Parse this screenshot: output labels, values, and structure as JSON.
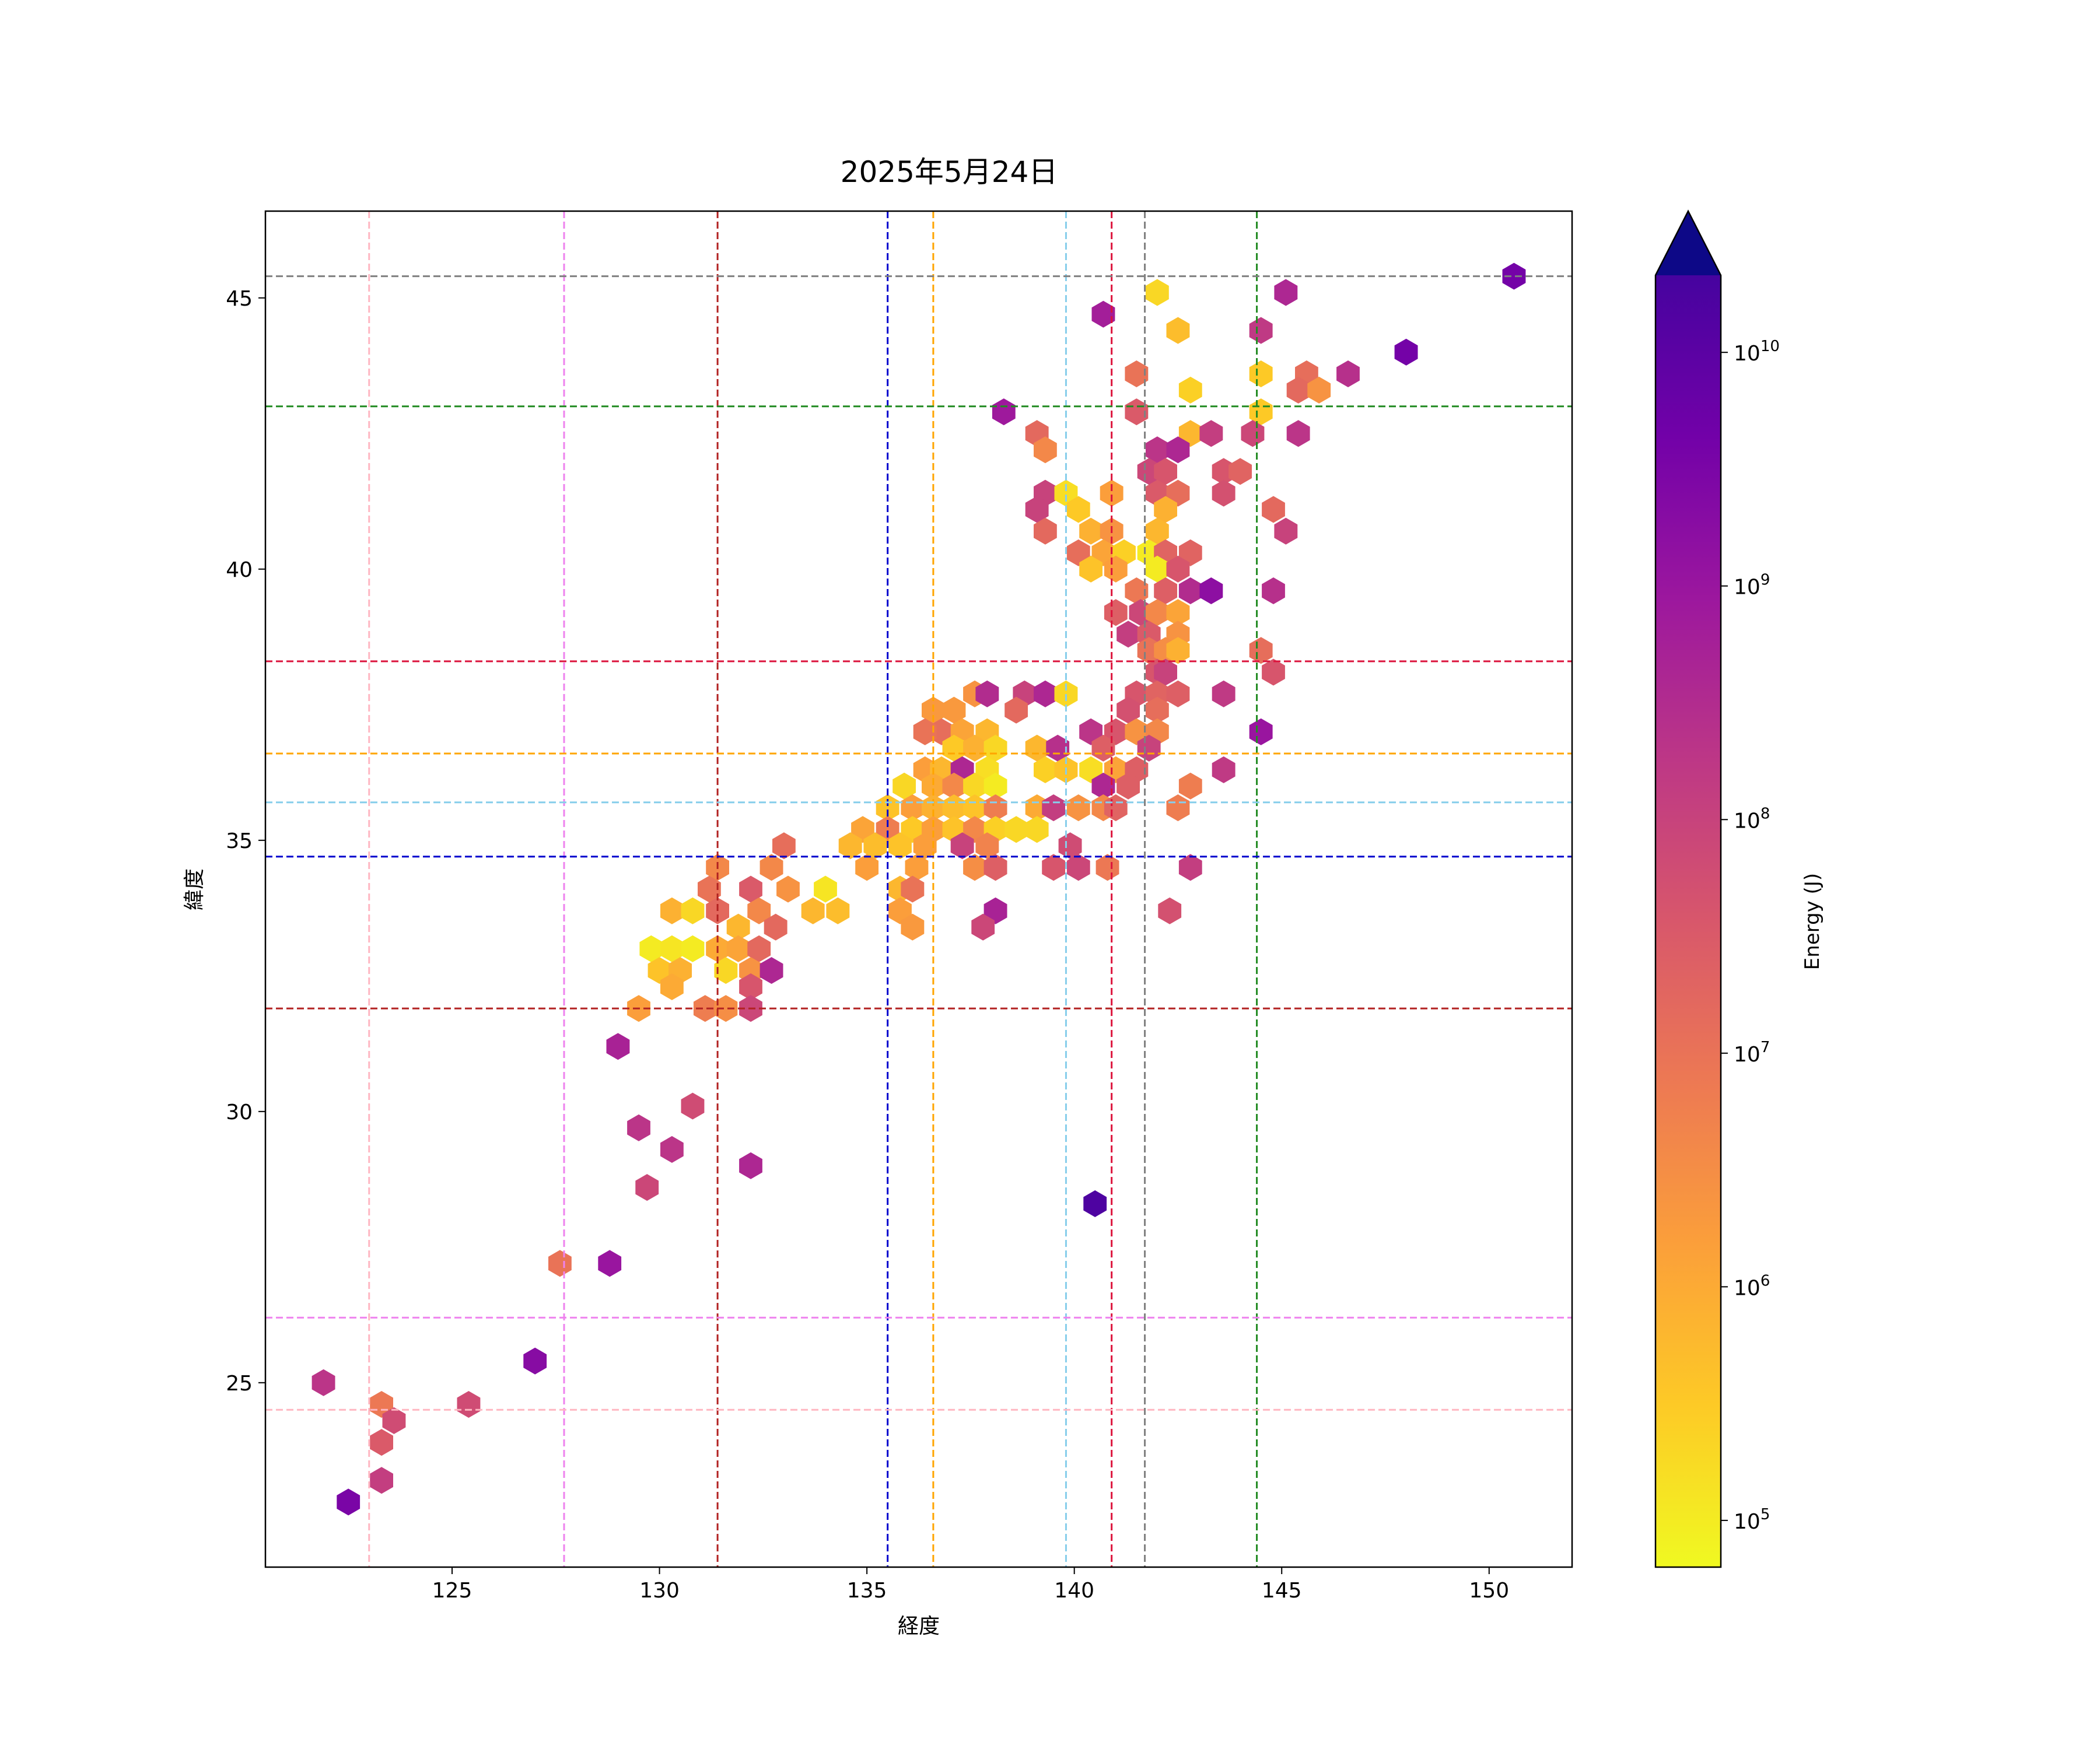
{
  "chart_data": {
    "type": "hexbin",
    "title": "2025年5月24日",
    "xlabel": "経度",
    "ylabel": "緯度",
    "xlim": [
      120.5,
      152.0
    ],
    "ylim": [
      21.6,
      46.6
    ],
    "xticks": [
      125,
      130,
      135,
      140,
      145,
      150
    ],
    "yticks": [
      25,
      30,
      35,
      40,
      45
    ],
    "grid": false,
    "colorbar": {
      "label": "Energy (J)",
      "scale": "log",
      "colormap": "plasma_r",
      "extend": "max",
      "min_exp": 4.8,
      "max_exp": 10.33,
      "ticks": [
        {
          "value": 100000,
          "label": "10",
          "exp": "5"
        },
        {
          "value": 1000000,
          "label": "10",
          "exp": "6"
        },
        {
          "value": 10000000,
          "label": "10",
          "exp": "7"
        },
        {
          "value": 100000000,
          "label": "10",
          "exp": "8"
        },
        {
          "value": 1000000000,
          "label": "10",
          "exp": "9"
        },
        {
          "value": 10000000000,
          "label": "10",
          "exp": "10"
        }
      ]
    },
    "reference_lines": {
      "vertical": [
        {
          "x": 123.0,
          "color": "#ffb6c1"
        },
        {
          "x": 127.7,
          "color": "#ee82ee"
        },
        {
          "x": 131.4,
          "color": "#b22222"
        },
        {
          "x": 135.5,
          "color": "#0000cd"
        },
        {
          "x": 136.6,
          "color": "#ffa500"
        },
        {
          "x": 139.8,
          "color": "#87ceeb"
        },
        {
          "x": 140.9,
          "color": "#dc143c"
        },
        {
          "x": 141.7,
          "color": "#808080"
        },
        {
          "x": 144.4,
          "color": "#228b22"
        }
      ],
      "horizontal": [
        {
          "y": 45.4,
          "color": "#808080"
        },
        {
          "y": 43.0,
          "color": "#228b22"
        },
        {
          "y": 38.3,
          "color": "#dc143c"
        },
        {
          "y": 36.6,
          "color": "#ffa500"
        },
        {
          "y": 35.7,
          "color": "#87ceeb"
        },
        {
          "y": 34.7,
          "color": "#0000cd"
        },
        {
          "y": 31.9,
          "color": "#b22222"
        },
        {
          "y": 26.2,
          "color": "#ee82ee"
        },
        {
          "y": 24.5,
          "color": "#ffb6c1"
        }
      ]
    },
    "cells": [
      [
        150.6,
        45.4,
        9.6
      ],
      [
        145.1,
        45.1,
        8.6
      ],
      [
        142.0,
        45.1,
        5.3
      ],
      [
        140.7,
        44.7,
        8.8
      ],
      [
        144.5,
        44.4,
        8.2
      ],
      [
        142.5,
        44.4,
        5.7
      ],
      [
        148.0,
        44.0,
        9.6
      ],
      [
        146.6,
        43.6,
        8.4
      ],
      [
        145.6,
        43.6,
        7.1
      ],
      [
        144.5,
        43.6,
        5.5
      ],
      [
        141.5,
        43.6,
        7.0
      ],
      [
        145.4,
        43.3,
        7.2
      ],
      [
        145.9,
        43.3,
        6.4
      ],
      [
        142.8,
        43.3,
        5.4
      ],
      [
        138.3,
        42.9,
        8.9
      ],
      [
        141.5,
        42.9,
        7.5
      ],
      [
        144.5,
        42.9,
        5.5
      ],
      [
        139.1,
        42.5,
        7.2
      ],
      [
        142.8,
        42.5,
        5.8
      ],
      [
        143.3,
        42.5,
        8.1
      ],
      [
        144.3,
        42.5,
        7.9
      ],
      [
        145.4,
        42.5,
        8.3
      ],
      [
        139.3,
        42.2,
        6.6
      ],
      [
        142.0,
        42.2,
        8.3
      ],
      [
        142.5,
        42.2,
        8.6
      ],
      [
        143.6,
        41.8,
        7.6
      ],
      [
        144.0,
        41.8,
        7.3
      ],
      [
        141.8,
        41.8,
        7.9
      ],
      [
        142.2,
        41.8,
        7.6
      ],
      [
        139.3,
        41.4,
        8.0
      ],
      [
        139.8,
        41.4,
        5.2
      ],
      [
        140.9,
        41.4,
        6.2
      ],
      [
        142.0,
        41.4,
        7.5
      ],
      [
        142.5,
        41.4,
        7.1
      ],
      [
        143.6,
        41.4,
        7.7
      ],
      [
        139.1,
        41.1,
        8.0
      ],
      [
        140.1,
        41.1,
        5.5
      ],
      [
        142.2,
        41.1,
        5.9
      ],
      [
        144.8,
        41.1,
        7.2
      ],
      [
        139.3,
        40.7,
        7.2
      ],
      [
        140.4,
        40.7,
        5.9
      ],
      [
        140.9,
        40.7,
        6.4
      ],
      [
        142.0,
        40.7,
        5.8
      ],
      [
        145.1,
        40.7,
        8.0
      ],
      [
        140.1,
        40.3,
        7.1
      ],
      [
        140.7,
        40.3,
        6.1
      ],
      [
        141.2,
        40.3,
        5.4
      ],
      [
        141.8,
        40.3,
        5.0
      ],
      [
        142.2,
        40.3,
        7.3
      ],
      [
        142.8,
        40.3,
        7.3
      ],
      [
        140.4,
        40.0,
        5.6
      ],
      [
        141.0,
        40.0,
        6.2
      ],
      [
        142.0,
        40.0,
        5.0
      ],
      [
        142.5,
        40.0,
        7.6
      ],
      [
        141.5,
        39.6,
        6.9
      ],
      [
        142.2,
        39.6,
        7.4
      ],
      [
        142.8,
        39.6,
        8.5
      ],
      [
        143.3,
        39.6,
        9.2
      ],
      [
        144.8,
        39.6,
        8.4
      ],
      [
        141.0,
        39.2,
        7.4
      ],
      [
        141.6,
        39.2,
        7.9
      ],
      [
        142.0,
        39.2,
        6.6
      ],
      [
        142.5,
        39.2,
        6.1
      ],
      [
        141.3,
        38.8,
        8.1
      ],
      [
        141.8,
        38.8,
        7.5
      ],
      [
        142.5,
        38.8,
        6.4
      ],
      [
        141.8,
        38.5,
        7.0
      ],
      [
        142.2,
        38.5,
        6.5
      ],
      [
        142.5,
        38.5,
        5.9
      ],
      [
        144.5,
        38.5,
        7.1
      ],
      [
        142.0,
        38.1,
        7.6
      ],
      [
        142.2,
        38.1,
        8.0
      ],
      [
        144.8,
        38.1,
        7.6
      ],
      [
        136.6,
        37.4,
        6.3
      ],
      [
        137.1,
        37.4,
        6.3
      ],
      [
        137.6,
        37.7,
        6.4
      ],
      [
        137.9,
        37.7,
        8.5
      ],
      [
        138.8,
        37.7,
        8.0
      ],
      [
        139.3,
        37.7,
        8.6
      ],
      [
        139.8,
        37.7,
        5.3
      ],
      [
        141.5,
        37.7,
        7.6
      ],
      [
        142.0,
        37.7,
        7.3
      ],
      [
        142.5,
        37.7,
        7.4
      ],
      [
        143.6,
        37.7,
        8.2
      ],
      [
        136.8,
        37.0,
        7.1
      ],
      [
        137.3,
        37.0,
        6.1
      ],
      [
        137.9,
        37.0,
        5.8
      ],
      [
        138.6,
        37.4,
        7.2
      ],
      [
        141.3,
        37.4,
        7.7
      ],
      [
        142.0,
        37.4,
        7.1
      ],
      [
        136.4,
        37.0,
        7.0
      ],
      [
        140.4,
        37.0,
        8.3
      ],
      [
        141.0,
        37.0,
        7.6
      ],
      [
        141.5,
        37.0,
        6.4
      ],
      [
        142.0,
        37.0,
        6.6
      ],
      [
        144.5,
        37.0,
        9.0
      ],
      [
        137.1,
        36.7,
        5.5
      ],
      [
        137.6,
        36.7,
        5.9
      ],
      [
        138.1,
        36.7,
        5.3
      ],
      [
        139.1,
        36.7,
        5.8
      ],
      [
        139.6,
        36.7,
        8.4
      ],
      [
        140.7,
        36.7,
        7.4
      ],
      [
        141.8,
        36.7,
        8.0
      ],
      [
        136.4,
        36.3,
        6.2
      ],
      [
        136.8,
        36.3,
        5.8
      ],
      [
        137.3,
        36.3,
        8.6
      ],
      [
        137.9,
        36.3,
        5.2
      ],
      [
        139.3,
        36.3,
        5.4
      ],
      [
        139.8,
        36.3,
        5.6
      ],
      [
        140.4,
        36.3,
        5.2
      ],
      [
        141.0,
        36.3,
        6.1
      ],
      [
        141.5,
        36.3,
        7.4
      ],
      [
        143.6,
        36.3,
        8.2
      ],
      [
        135.9,
        36.0,
        5.3
      ],
      [
        136.6,
        36.0,
        6.0
      ],
      [
        137.1,
        36.0,
        6.6
      ],
      [
        137.6,
        36.0,
        5.3
      ],
      [
        138.1,
        36.0,
        5.0
      ],
      [
        140.7,
        36.0,
        8.6
      ],
      [
        141.3,
        36.0,
        7.4
      ],
      [
        142.8,
        36.0,
        6.8
      ],
      [
        135.5,
        35.6,
        5.6
      ],
      [
        136.1,
        35.6,
        6.2
      ],
      [
        136.6,
        35.6,
        5.9
      ],
      [
        137.1,
        35.6,
        5.7
      ],
      [
        137.6,
        35.6,
        5.6
      ],
      [
        138.1,
        35.6,
        6.8
      ],
      [
        139.1,
        35.6,
        6.0
      ],
      [
        139.5,
        35.6,
        8.1
      ],
      [
        140.1,
        35.6,
        6.4
      ],
      [
        140.7,
        35.6,
        6.6
      ],
      [
        141.0,
        35.6,
        7.3
      ],
      [
        142.5,
        35.6,
        6.8
      ],
      [
        134.9,
        35.2,
        6.1
      ],
      [
        135.5,
        35.2,
        6.8
      ],
      [
        136.1,
        35.2,
        5.5
      ],
      [
        136.6,
        35.2,
        6.2
      ],
      [
        137.1,
        35.2,
        5.6
      ],
      [
        137.6,
        35.2,
        6.6
      ],
      [
        138.1,
        35.2,
        5.4
      ],
      [
        138.6,
        35.2,
        5.3
      ],
      [
        139.1,
        35.2,
        5.3
      ],
      [
        134.6,
        34.9,
        5.8
      ],
      [
        135.2,
        34.9,
        5.7
      ],
      [
        135.8,
        34.9,
        5.6
      ],
      [
        136.4,
        34.9,
        6.2
      ],
      [
        137.3,
        34.9,
        8.0
      ],
      [
        137.9,
        34.9,
        6.7
      ],
      [
        139.9,
        34.9,
        7.8
      ],
      [
        133.0,
        34.9,
        7.1
      ],
      [
        132.7,
        34.5,
        6.6
      ],
      [
        135.0,
        34.5,
        6.2
      ],
      [
        136.2,
        34.5,
        6.2
      ],
      [
        137.6,
        34.5,
        6.5
      ],
      [
        138.1,
        34.5,
        7.4
      ],
      [
        139.5,
        34.5,
        7.6
      ],
      [
        140.1,
        34.5,
        7.9
      ],
      [
        140.8,
        34.5,
        6.9
      ],
      [
        142.8,
        34.5,
        8.1
      ],
      [
        131.4,
        34.5,
        6.6
      ],
      [
        133.1,
        34.1,
        6.4
      ],
      [
        134.0,
        34.1,
        5.1
      ],
      [
        135.8,
        34.1,
        5.8
      ],
      [
        136.1,
        34.1,
        7.0
      ],
      [
        131.2,
        34.1,
        7.0
      ],
      [
        132.2,
        34.1,
        7.5
      ],
      [
        130.3,
        33.7,
        5.9
      ],
      [
        130.8,
        33.7,
        5.3
      ],
      [
        131.4,
        33.7,
        7.2
      ],
      [
        132.4,
        33.7,
        6.6
      ],
      [
        133.7,
        33.7,
        5.8
      ],
      [
        134.3,
        33.7,
        5.7
      ],
      [
        135.8,
        33.7,
        6.2
      ],
      [
        138.1,
        33.7,
        8.7
      ],
      [
        142.3,
        33.7,
        7.7
      ],
      [
        131.9,
        33.4,
        5.8
      ],
      [
        132.8,
        33.4,
        7.2
      ],
      [
        136.1,
        33.4,
        6.3
      ],
      [
        137.8,
        33.4,
        7.9
      ],
      [
        129.8,
        33.0,
        5.0
      ],
      [
        130.3,
        33.0,
        5.1
      ],
      [
        130.8,
        33.0,
        5.0
      ],
      [
        131.4,
        33.0,
        6.0
      ],
      [
        131.9,
        33.0,
        6.1
      ],
      [
        132.4,
        33.0,
        7.2
      ],
      [
        130.0,
        32.6,
        5.6
      ],
      [
        130.5,
        32.6,
        5.9
      ],
      [
        131.6,
        32.6,
        5.3
      ],
      [
        132.2,
        32.6,
        6.4
      ],
      [
        132.7,
        32.6,
        8.6
      ],
      [
        130.3,
        32.3,
        6.0
      ],
      [
        132.2,
        32.3,
        7.6
      ],
      [
        129.5,
        31.9,
        6.2
      ],
      [
        131.1,
        31.9,
        6.8
      ],
      [
        131.6,
        31.9,
        6.5
      ],
      [
        132.2,
        31.9,
        7.9
      ],
      [
        129.0,
        31.2,
        8.7
      ],
      [
        130.8,
        30.1,
        7.8
      ],
      [
        129.5,
        29.7,
        8.3
      ],
      [
        130.3,
        29.3,
        8.3
      ],
      [
        132.2,
        29.0,
        8.6
      ],
      [
        129.7,
        28.6,
        7.9
      ],
      [
        140.5,
        28.3,
        10.2
      ],
      [
        127.6,
        27.2,
        7.0
      ],
      [
        128.8,
        27.2,
        9.0
      ],
      [
        127.0,
        25.4,
        9.3
      ],
      [
        121.9,
        25.0,
        8.3
      ],
      [
        125.4,
        24.6,
        7.8
      ],
      [
        123.3,
        24.6,
        6.9
      ],
      [
        123.6,
        24.3,
        7.8
      ],
      [
        123.3,
        23.9,
        7.5
      ],
      [
        123.3,
        23.2,
        8.1
      ],
      [
        122.5,
        22.8,
        9.5
      ]
    ]
  }
}
